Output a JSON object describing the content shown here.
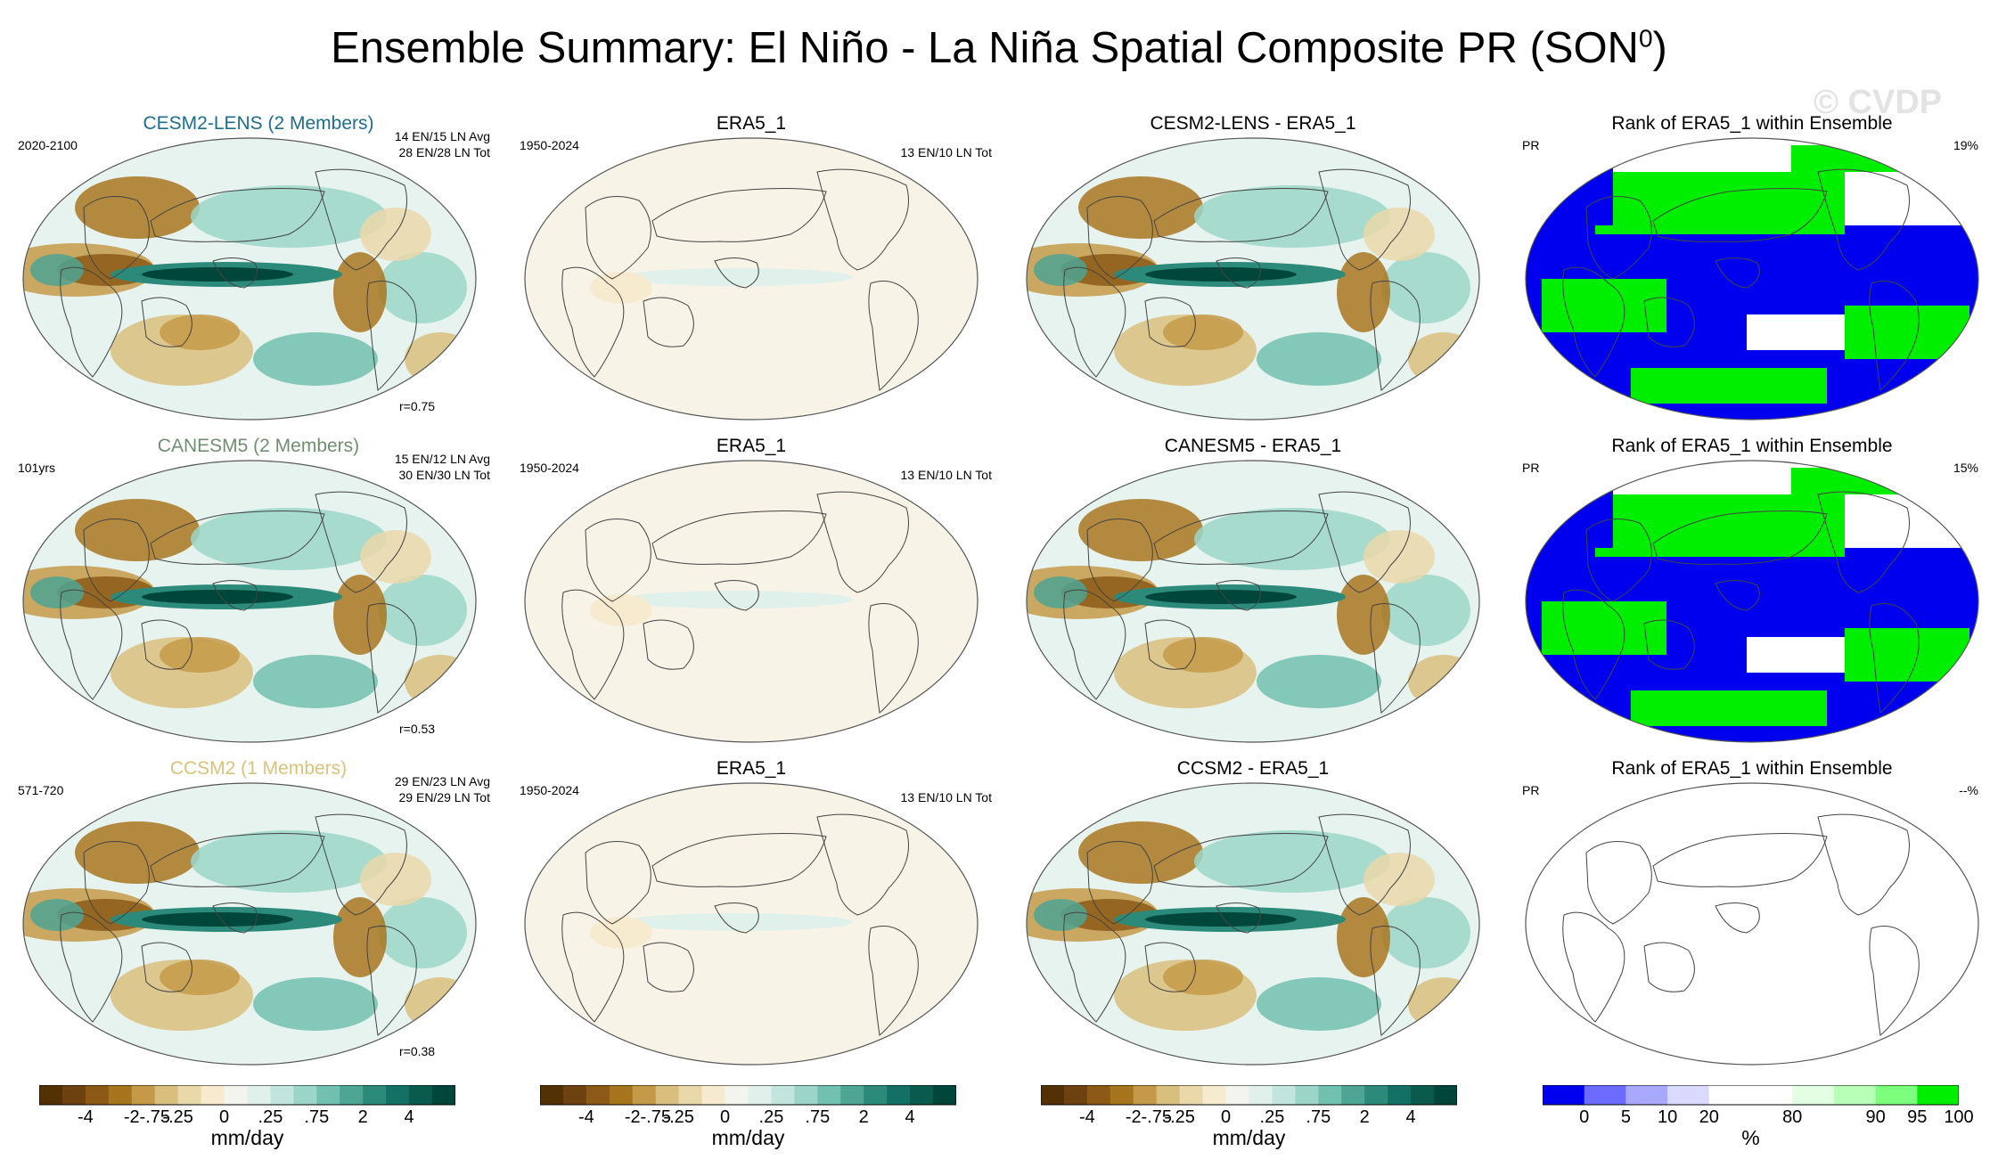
{
  "title": "Ensemble Summary: El Niño - La Niña Spatial Composite PR (SON",
  "title_sup": "0",
  "title_close": ")",
  "watermark": "© CVDP",
  "rows": [
    {
      "model": "CESM2-LENS (2 Members)",
      "model_color": "#1d6d8c",
      "years": "2020-2100",
      "avg": "14 EN/15 LN Avg",
      "tot": "28 EN/28 LN Tot",
      "r": "r=0.75",
      "obs_title": "ERA5_1",
      "obs_years": "1950-2024",
      "obs_tot": "13 EN/10 LN Tot",
      "diff_title": "CESM2-LENS - ERA5_1",
      "rank_title": "Rank of ERA5_1 within Ensemble",
      "rank_var": "PR",
      "rank_pct": "19%"
    },
    {
      "model": "CANESM5 (2 Members)",
      "model_color": "#6f8f6f",
      "years": "101yrs",
      "avg": "15 EN/12 LN Avg",
      "tot": "30 EN/30 LN Tot",
      "r": "r=0.53",
      "obs_title": "ERA5_1",
      "obs_years": "1950-2024",
      "obs_tot": "13 EN/10 LN Tot",
      "diff_title": "CANESM5 - ERA5_1",
      "rank_title": "Rank of ERA5_1 within Ensemble",
      "rank_var": "PR",
      "rank_pct": "15%"
    },
    {
      "model": "CCSM2 (1 Members)",
      "model_color": "#d9c37a",
      "years": "571-720",
      "avg": "29 EN/23 LN Avg",
      "tot": "29 EN/29 LN Tot",
      "r": "r=0.38",
      "obs_title": "ERA5_1",
      "obs_years": "1950-2024",
      "obs_tot": "13 EN/10 LN Tot",
      "diff_title": "CCSM2 - ERA5_1",
      "rank_title": "Rank of ERA5_1 within Ensemble",
      "rank_var": "PR",
      "rank_pct": "--%"
    }
  ],
  "colorbars": {
    "pr": {
      "unit": "mm/day",
      "colors": [
        "#543005",
        "#6d4110",
        "#8c5a16",
        "#a8751f",
        "#c49a48",
        "#d9bf7e",
        "#ead8aa",
        "#f6ebcf",
        "#f4f4ef",
        "#e0f1ec",
        "#c2e6de",
        "#9bd6c8",
        "#72c0af",
        "#4ea593",
        "#2c8a7a",
        "#137064",
        "#0a5a4d",
        "#00463a"
      ],
      "labels": [
        "-4",
        "-2",
        "-.75",
        "-.25",
        "0",
        ".25",
        ".75",
        "2",
        "4"
      ]
    },
    "rank": {
      "unit": "%",
      "colors": [
        "#0000ee",
        "#6b6bff",
        "#a8a8ff",
        "#dadaff",
        "#ffffff",
        "#ffffff",
        "#e3ffe3",
        "#b8ffb8",
        "#7dff7d",
        "#00ee00"
      ],
      "labels": [
        "0",
        "5",
        "10",
        "20",
        "80",
        "90",
        "95",
        "100"
      ]
    }
  },
  "chart_data": {
    "type": "heatmap",
    "description_units": "mm/day composite precipitation difference (El Niño minus La Niña), SON season",
    "colorbar_levels_pr": [
      -4,
      -3,
      -2,
      -1,
      -0.75,
      -0.5,
      -0.25,
      0,
      0.25,
      0.5,
      0.75,
      1,
      2,
      3,
      4
    ],
    "colorbar_tick_labels_pr": [
      "-4",
      "-2",
      "-.75",
      "-.25",
      "0",
      ".25",
      ".75",
      "2",
      "4"
    ],
    "rank_levels_pct": [
      0,
      5,
      10,
      20,
      80,
      90,
      95,
      100
    ],
    "panels": [
      {
        "row": 1,
        "col": 1,
        "name": "CESM2-LENS (2 Members)",
        "pattern_correlation": 0.75
      },
      {
        "row": 2,
        "col": 1,
        "name": "CANESM5 (2 Members)",
        "pattern_correlation": 0.53
      },
      {
        "row": 3,
        "col": 1,
        "name": "CCSM2 (1 Members)",
        "pattern_correlation": 0.38
      },
      {
        "row": 1,
        "col": 4,
        "name": "Rank of ERA5_1 within Ensemble",
        "rank_pct": 19
      },
      {
        "row": 2,
        "col": 4,
        "name": "Rank of ERA5_1 within Ensemble",
        "rank_pct": 15
      }
    ]
  }
}
